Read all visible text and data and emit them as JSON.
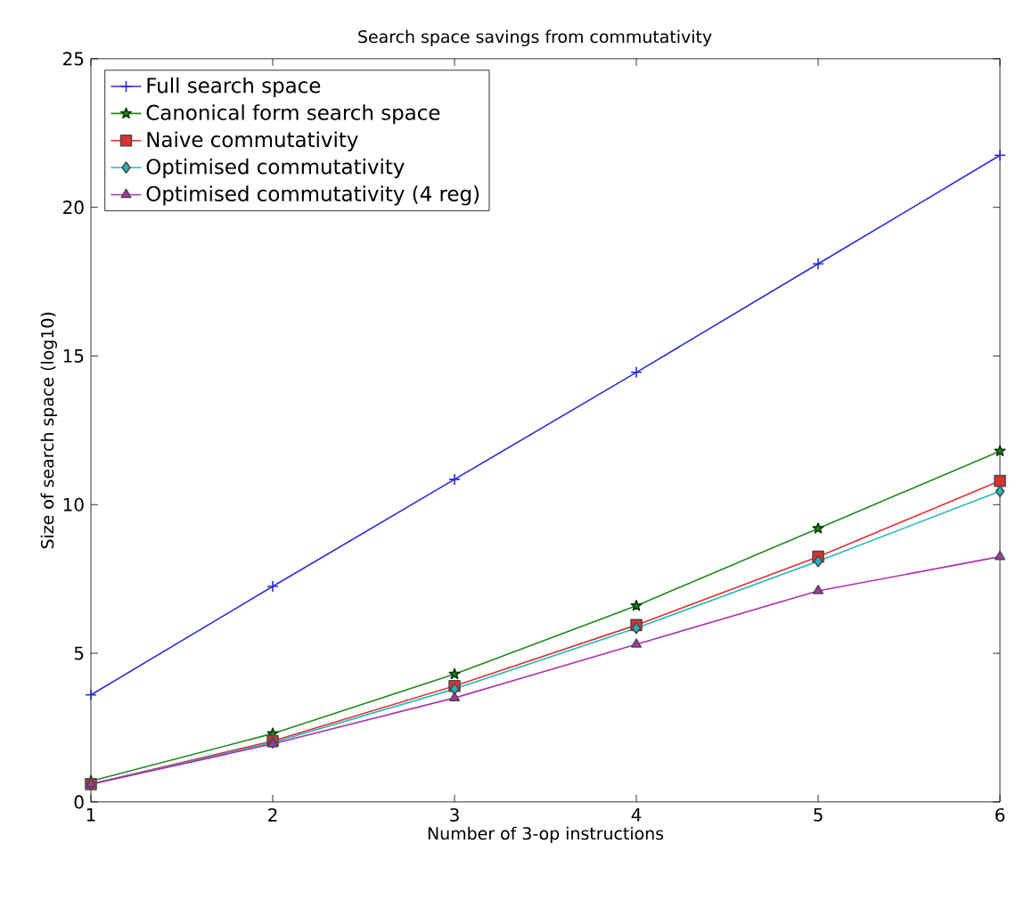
{
  "chart_data": {
    "type": "line",
    "title": "Search space savings from commutativity",
    "xlabel": "Number of 3-op instructions",
    "ylabel": "Size of search space (log10)",
    "x": [
      1,
      2,
      3,
      4,
      5,
      6
    ],
    "series": [
      {
        "name": "Full search space",
        "color": "#2b2bdd",
        "marker": "cross",
        "values": [
          3.6,
          7.25,
          10.85,
          14.45,
          18.1,
          21.75
        ]
      },
      {
        "name": "Canonical form search space",
        "color": "#1f8a1f",
        "marker": "star",
        "values": [
          0.7,
          2.3,
          4.3,
          6.6,
          9.2,
          11.8
        ]
      },
      {
        "name": "Naive commutativity",
        "color": "#e03030",
        "marker": "square",
        "values": [
          0.6,
          2.05,
          3.9,
          5.95,
          8.25,
          10.8
        ]
      },
      {
        "name": "Optimised commutativity",
        "color": "#20b8b8",
        "marker": "diamond",
        "values": [
          0.6,
          2.0,
          3.8,
          5.85,
          8.1,
          10.45
        ]
      },
      {
        "name": "Optimised commutativity (4 reg)",
        "color": "#b030b0",
        "marker": "triangle",
        "values": [
          0.6,
          1.95,
          3.5,
          5.3,
          7.1,
          8.25
        ]
      }
    ],
    "xlim": [
      1,
      6
    ],
    "ylim": [
      0,
      25
    ],
    "xticks": [
      1,
      2,
      3,
      4,
      5,
      6
    ],
    "yticks": [
      0,
      5,
      10,
      15,
      20,
      25
    ],
    "grid": false,
    "legend": "top left"
  }
}
